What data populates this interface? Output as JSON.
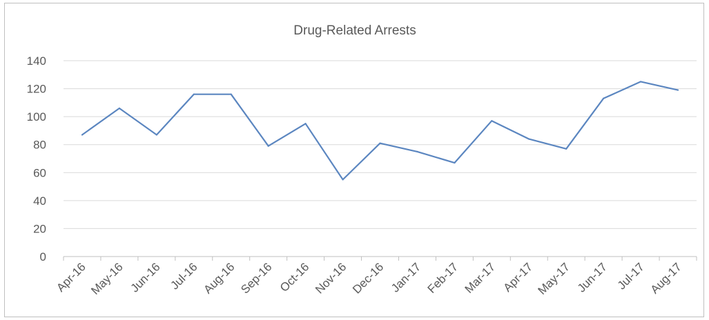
{
  "chart_data": {
    "type": "line",
    "title": "Drug-Related Arrests",
    "xlabel": "",
    "ylabel": "",
    "categories": [
      "Apr-16",
      "May-16",
      "Jun-16",
      "Jul-16",
      "Aug-16",
      "Sep-16",
      "Oct-16",
      "Nov-16",
      "Dec-16",
      "Jan-17",
      "Feb-17",
      "Mar-17",
      "Apr-17",
      "May-17",
      "Jun-17",
      "Jul-17",
      "Aug-17"
    ],
    "series": [
      {
        "values": [
          87,
          106,
          87,
          116,
          116,
          79,
          95,
          55,
          81,
          75,
          67,
          97,
          84,
          77,
          113,
          125,
          119
        ],
        "color": "#5b86c0"
      }
    ],
    "ylim": [
      0,
      140
    ],
    "yticks": [
      0,
      20,
      40,
      60,
      80,
      100,
      120,
      140
    ],
    "grid": true,
    "legend": "none"
  }
}
